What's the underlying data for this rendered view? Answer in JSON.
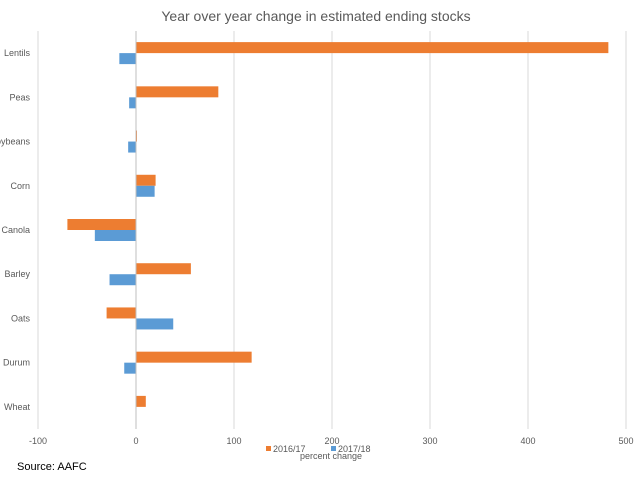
{
  "chart_data": {
    "type": "bar",
    "orientation": "horizontal",
    "title": "Year over year change in estimated ending stocks",
    "xlabel": "percent change",
    "ylabel": "",
    "xlim": [
      -100,
      500
    ],
    "xticks": [
      -100,
      0,
      100,
      200,
      300,
      400,
      500
    ],
    "grid": true,
    "legend_position": "bottom",
    "categories": [
      "Lentils",
      "Peas",
      "Soybeans",
      "Corn",
      "Canola",
      "Barley",
      "Oats",
      "Durum",
      "Wheat"
    ],
    "series": [
      {
        "name": "2016/17",
        "color": "#ED7D31",
        "values": [
          482,
          84,
          1,
          20,
          -70,
          56,
          -30,
          118,
          10
        ]
      },
      {
        "name": "2017/18",
        "color": "#5B9BD5",
        "values": [
          -17,
          -7,
          -8,
          19,
          -42,
          -27,
          38,
          -12,
          0
        ]
      }
    ],
    "source": "Source: AAFC"
  }
}
